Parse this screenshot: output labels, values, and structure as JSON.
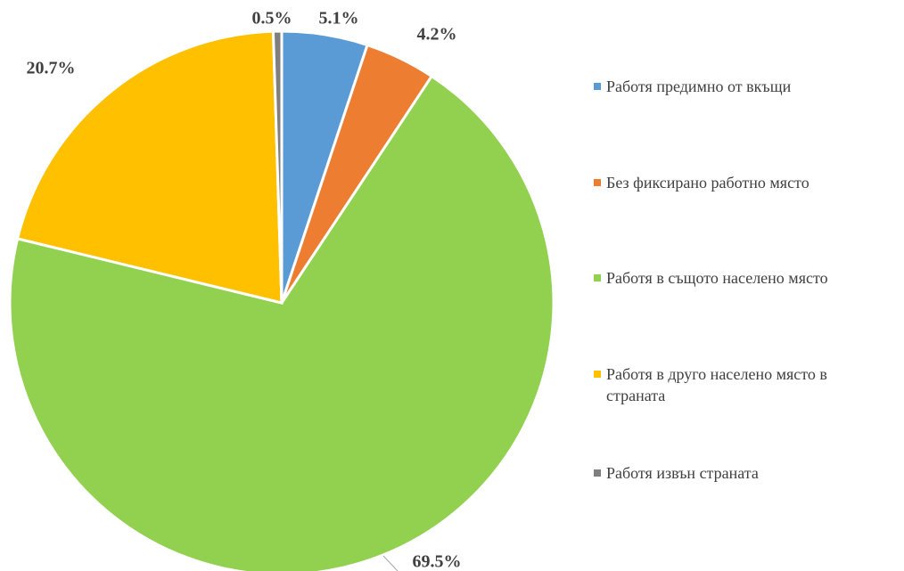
{
  "chart_data": {
    "type": "pie",
    "categories": [
      "Работя предимно от вкъщи",
      "Без фиксирано работно място",
      "Работя в същото населено място",
      "Работя в друго населено място в страната",
      "Работя извън страната"
    ],
    "values": [
      5.1,
      4.2,
      69.5,
      20.7,
      0.5
    ],
    "value_labels": [
      "5.1%",
      "4.2%",
      "69.5%",
      "20.7%",
      "0.5%"
    ],
    "colors": [
      "#5b9bd5",
      "#ed7d31",
      "#92d050",
      "#ffc000",
      "#7f7f7f"
    ],
    "legend": "right"
  }
}
